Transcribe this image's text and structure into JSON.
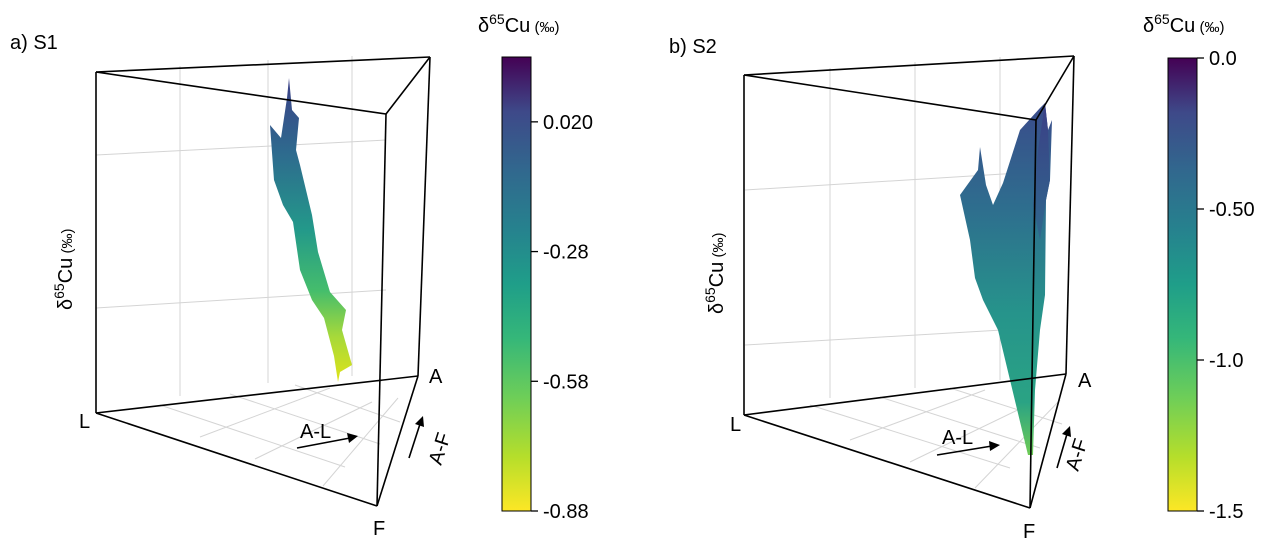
{
  "chart_data": [
    {
      "type": "surface",
      "panel_label": "a) S1",
      "vertex_labels": [
        "L",
        "A",
        "F"
      ],
      "edge_labels": [
        "A-L",
        "A-F"
      ],
      "z_label": {
        "symbol": "δ",
        "sup": "65",
        "base": "Cu",
        "unit": " (‰)"
      },
      "colorbar": {
        "title": {
          "symbol": "δ",
          "sup": "65",
          "base": "Cu",
          "unit": " (‰)"
        },
        "range": [
          -0.88,
          0.17
        ],
        "ticks": [
          "0.020",
          "-0.28",
          "-0.58",
          "-0.88"
        ],
        "tick_values": [
          0.02,
          -0.28,
          -0.58,
          -0.88
        ],
        "palette": "viridis"
      },
      "grid": true
    },
    {
      "type": "surface",
      "panel_label": "b) S2",
      "vertex_labels": [
        "L",
        "A",
        "F"
      ],
      "edge_labels": [
        "A-L",
        "A-F"
      ],
      "z_label": {
        "symbol": "δ",
        "sup": "65",
        "base": "Cu",
        "unit": " (‰)"
      },
      "colorbar": {
        "title": {
          "symbol": "δ",
          "sup": "65",
          "base": "Cu",
          "unit": " (‰)"
        },
        "range": [
          -1.5,
          0.0
        ],
        "ticks": [
          "0.0",
          "-0.50",
          "-1.0",
          "-1.5"
        ],
        "tick_values": [
          0.0,
          -0.5,
          -1.0,
          -1.5
        ],
        "palette": "viridis"
      },
      "grid": true
    }
  ]
}
